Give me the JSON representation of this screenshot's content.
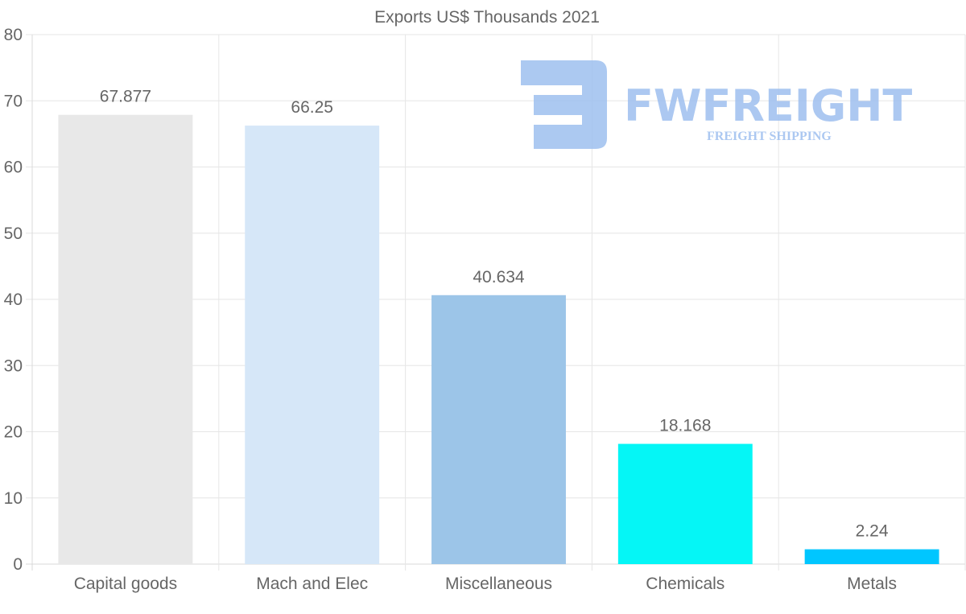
{
  "chart_data": {
    "type": "bar",
    "title": "Exports US$ Thousands 2021",
    "categories": [
      "Capital goods",
      "Mach and Elec",
      "Miscellaneous",
      "Chemicals",
      "Metals"
    ],
    "values": [
      67.877,
      66.25,
      40.634,
      18.168,
      2.24
    ],
    "value_labels": [
      "67.877",
      "66.25",
      "40.634",
      "18.168",
      "2.24"
    ],
    "colors": [
      "#e8e8e8",
      "#d6e7f8",
      "#9cc5e8",
      "#05f6f6",
      "#00c6ff"
    ],
    "ylim": [
      0,
      80
    ],
    "yticks": [
      0,
      10,
      20,
      30,
      40,
      50,
      60,
      70,
      80
    ],
    "xlabel": "",
    "ylabel": "",
    "grid": true
  },
  "watermark": {
    "brand": "FWFREIGHT",
    "tagline": "FREIGHT SHIPPING",
    "color": "#9ebfef"
  }
}
